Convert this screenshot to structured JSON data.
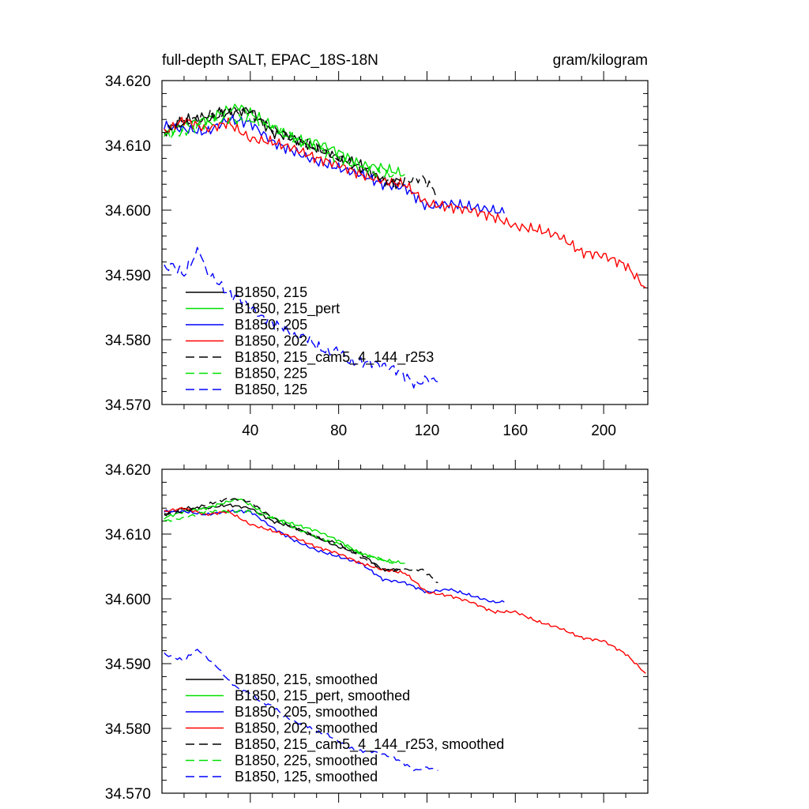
{
  "chart_data": [
    {
      "type": "line",
      "title_left": "full-depth SALT, EPAC_18S-18N",
      "title_right": "gram/kilogram",
      "xlim": [
        0,
        220
      ],
      "ylim": [
        34.57,
        34.62
      ],
      "yticks": [
        "34.620",
        "34.610",
        "34.600",
        "34.590",
        "34.580",
        "34.570"
      ],
      "xticks": [
        "40",
        "80",
        "120",
        "160",
        "200"
      ],
      "grid": false,
      "legend_position": "lower-left",
      "series": [
        {
          "name": "B1850, 215",
          "color": "#000000",
          "dash": "solid",
          "x": [
            1,
            10,
            20,
            30,
            40,
            50,
            60,
            70,
            80,
            90,
            100,
            108
          ],
          "y": [
            34.612,
            34.614,
            34.614,
            34.615,
            34.6155,
            34.612,
            34.611,
            34.6095,
            34.608,
            34.607,
            34.6045,
            34.604
          ]
        },
        {
          "name": "B1850, 215_pert",
          "color": "#00e000",
          "dash": "solid",
          "x": [
            1,
            10,
            20,
            30,
            35,
            40,
            50,
            60,
            70,
            80,
            90,
            100,
            110
          ],
          "y": [
            34.612,
            34.613,
            34.614,
            34.6155,
            34.616,
            34.615,
            34.613,
            34.611,
            34.6105,
            34.609,
            34.607,
            34.6065,
            34.6055
          ]
        },
        {
          "name": "B1850, 205",
          "color": "#0000ff",
          "dash": "solid",
          "x": [
            1,
            10,
            20,
            30,
            40,
            50,
            60,
            70,
            80,
            90,
            100,
            110,
            120,
            130,
            140,
            150,
            155
          ],
          "y": [
            34.613,
            34.6125,
            34.612,
            34.614,
            34.6135,
            34.6105,
            34.609,
            34.6075,
            34.6065,
            34.6055,
            34.604,
            34.6035,
            34.6005,
            34.601,
            34.6005,
            34.6,
            34.5995
          ]
        },
        {
          "name": "B1850, 202",
          "color": "#ff0000",
          "dash": "solid",
          "x": [
            1,
            10,
            20,
            30,
            40,
            50,
            60,
            70,
            80,
            90,
            100,
            110,
            120,
            130,
            140,
            150,
            160,
            170,
            180,
            190,
            200,
            210,
            219
          ],
          "y": [
            34.612,
            34.614,
            34.6125,
            34.6135,
            34.611,
            34.6105,
            34.6095,
            34.608,
            34.607,
            34.6055,
            34.6045,
            34.604,
            34.601,
            34.6005,
            34.6,
            34.599,
            34.5975,
            34.597,
            34.596,
            34.5935,
            34.593,
            34.5915,
            34.588
          ]
        },
        {
          "name": "B1850, 215_cam5_4_144_r253",
          "color": "#000000",
          "dash": "dashed",
          "x": [
            1,
            10,
            20,
            30,
            40,
            50,
            60,
            70,
            80,
            90,
            100,
            110,
            118,
            125
          ],
          "y": [
            34.612,
            34.6135,
            34.6145,
            34.6155,
            34.615,
            34.6125,
            34.611,
            34.6095,
            34.608,
            34.6065,
            34.6045,
            34.6045,
            34.605,
            34.6025
          ]
        },
        {
          "name": "B1850, 225",
          "color": "#00e000",
          "dash": "dashed",
          "x": [
            1,
            10,
            20,
            30,
            40,
            50,
            60,
            70,
            80,
            90,
            100,
            105
          ],
          "y": [
            34.6115,
            34.612,
            34.6135,
            34.614,
            34.614,
            34.6125,
            34.611,
            34.6095,
            34.608,
            34.6065,
            34.6055,
            34.6055
          ]
        },
        {
          "name": "B1850, 125",
          "color": "#0000ff",
          "dash": "dashed",
          "x": [
            1,
            5,
            10,
            15,
            17,
            20,
            25,
            30,
            35,
            40,
            45,
            50,
            55,
            60,
            65,
            70,
            75,
            80,
            85,
            90,
            95,
            100,
            105,
            110,
            115,
            120,
            125
          ],
          "y": [
            34.591,
            34.5915,
            34.59,
            34.593,
            34.594,
            34.5905,
            34.589,
            34.587,
            34.5865,
            34.585,
            34.5835,
            34.5825,
            34.582,
            34.5805,
            34.5805,
            34.579,
            34.578,
            34.5785,
            34.5765,
            34.5765,
            34.5765,
            34.576,
            34.5755,
            34.5745,
            34.573,
            34.574,
            34.5735
          ]
        }
      ]
    },
    {
      "type": "line",
      "xlim": [
        0,
        220
      ],
      "ylim": [
        34.57,
        34.62
      ],
      "yticks": [
        "34.620",
        "34.610",
        "34.600",
        "34.590",
        "34.580",
        "34.570"
      ],
      "grid": false,
      "legend_position": "lower-left",
      "series": [
        {
          "name": "B1850, 215, smoothed",
          "color": "#000000",
          "dash": "solid",
          "x": [
            1,
            10,
            20,
            30,
            40,
            50,
            60,
            70,
            80,
            90,
            100,
            108
          ],
          "y": [
            34.613,
            34.614,
            34.614,
            34.6145,
            34.614,
            34.612,
            34.611,
            34.6095,
            34.608,
            34.607,
            34.6045,
            34.6045
          ]
        },
        {
          "name": "B1850, 215_pert, smoothed",
          "color": "#00e000",
          "dash": "solid",
          "x": [
            1,
            10,
            20,
            30,
            35,
            40,
            50,
            60,
            70,
            80,
            90,
            100,
            110
          ],
          "y": [
            34.6125,
            34.6135,
            34.614,
            34.615,
            34.6155,
            34.6145,
            34.6125,
            34.6115,
            34.6105,
            34.609,
            34.607,
            34.606,
            34.6055
          ]
        },
        {
          "name": "B1850, 205, smoothed",
          "color": "#0000ff",
          "dash": "solid",
          "x": [
            1,
            10,
            20,
            30,
            40,
            50,
            60,
            70,
            80,
            90,
            100,
            110,
            120,
            130,
            140,
            150,
            155
          ],
          "y": [
            34.6135,
            34.6135,
            34.613,
            34.6135,
            34.6135,
            34.611,
            34.609,
            34.6075,
            34.6065,
            34.6055,
            34.603,
            34.6025,
            34.601,
            34.6015,
            34.6005,
            34.5995,
            34.5995
          ]
        },
        {
          "name": "B1850, 202, smoothed",
          "color": "#ff0000",
          "dash": "solid",
          "x": [
            1,
            10,
            20,
            30,
            40,
            50,
            60,
            70,
            80,
            90,
            100,
            110,
            120,
            130,
            140,
            150,
            160,
            170,
            180,
            190,
            200,
            210,
            219
          ],
          "y": [
            34.6135,
            34.614,
            34.613,
            34.6135,
            34.6115,
            34.6105,
            34.6095,
            34.608,
            34.607,
            34.6055,
            34.6045,
            34.604,
            34.601,
            34.6005,
            34.5995,
            34.598,
            34.598,
            34.5965,
            34.5955,
            34.594,
            34.5935,
            34.5915,
            34.5885
          ]
        },
        {
          "name": "B1850, 215_cam5_4_144_r253, smoothed",
          "color": "#000000",
          "dash": "dashed",
          "x": [
            1,
            10,
            20,
            30,
            40,
            50,
            60,
            70,
            80,
            90,
            100,
            110,
            118,
            125
          ],
          "y": [
            34.613,
            34.6135,
            34.6145,
            34.6155,
            34.615,
            34.6125,
            34.611,
            34.6095,
            34.6085,
            34.6065,
            34.6045,
            34.6045,
            34.6045,
            34.6025
          ]
        },
        {
          "name": "B1850, 225, smoothed",
          "color": "#00e000",
          "dash": "dashed",
          "x": [
            1,
            10,
            20,
            30,
            40,
            50,
            60,
            70,
            80,
            90,
            100,
            105
          ],
          "y": [
            34.612,
            34.6125,
            34.6135,
            34.6135,
            34.6135,
            34.6125,
            34.611,
            34.6095,
            34.6085,
            34.607,
            34.606,
            34.6055
          ]
        },
        {
          "name": "B1850, 125, smoothed",
          "color": "#0000ff",
          "dash": "dashed",
          "x": [
            1,
            5,
            10,
            15,
            17,
            20,
            25,
            30,
            35,
            40,
            45,
            50,
            55,
            60,
            65,
            70,
            75,
            80,
            85,
            90,
            95,
            100,
            105,
            110,
            115,
            120,
            125
          ],
          "y": [
            34.5915,
            34.591,
            34.5905,
            34.592,
            34.592,
            34.591,
            34.5895,
            34.5875,
            34.586,
            34.5855,
            34.584,
            34.5835,
            34.582,
            34.581,
            34.5805,
            34.5795,
            34.579,
            34.578,
            34.577,
            34.5765,
            34.5765,
            34.576,
            34.5755,
            34.5745,
            34.5735,
            34.574,
            34.5735
          ]
        }
      ]
    }
  ]
}
